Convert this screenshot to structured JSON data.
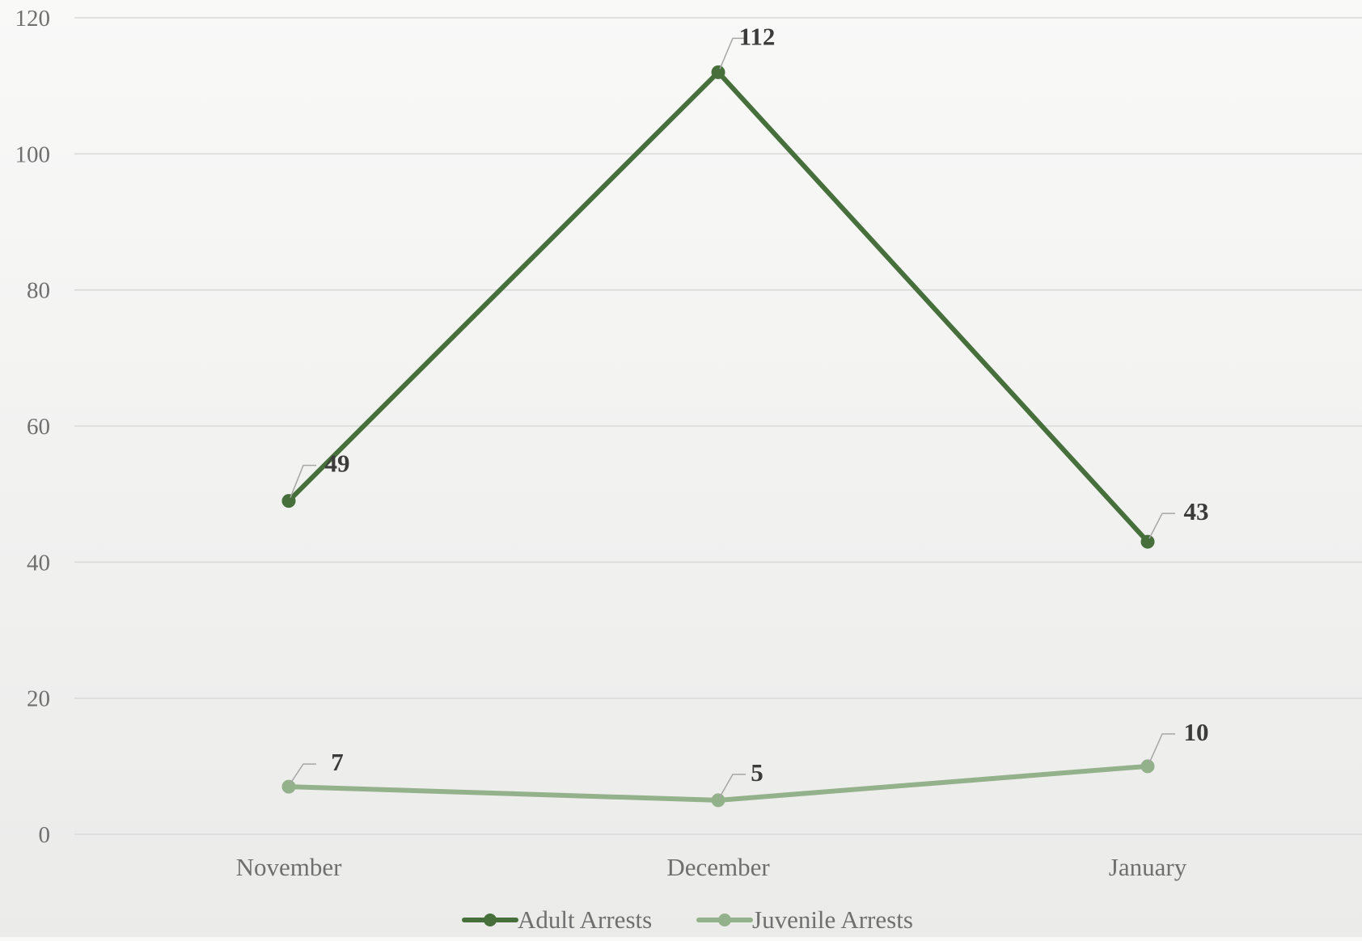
{
  "chart_data": {
    "type": "line",
    "categories": [
      "November",
      "December",
      "January"
    ],
    "series": [
      {
        "name": "Adult Arrests",
        "values": [
          49,
          112,
          43
        ],
        "color": "#466f3b"
      },
      {
        "name": "Juvenile Arrests",
        "values": [
          7,
          5,
          10
        ],
        "color": "#93b18a"
      }
    ],
    "ylim": [
      0,
      120
    ],
    "yticks": [
      0,
      20,
      40,
      60,
      80,
      100,
      120
    ],
    "grid": true,
    "legend_position": "bottom",
    "markers": true,
    "data_labels": true
  }
}
